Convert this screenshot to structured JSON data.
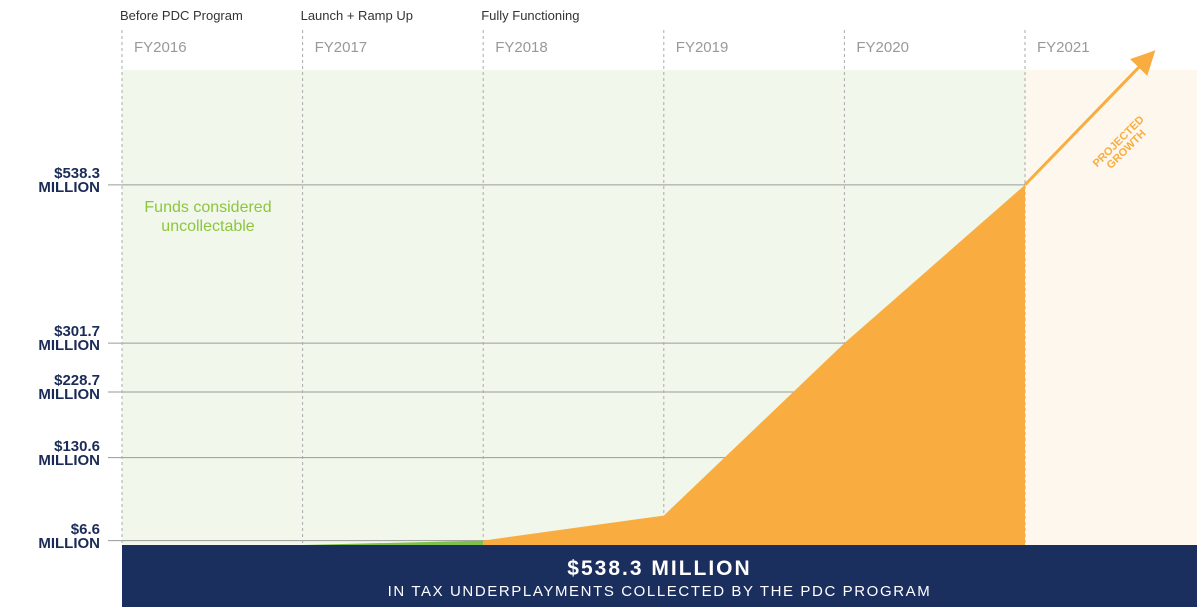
{
  "chart_data": {
    "type": "area",
    "phases": [
      "Before PDC Program",
      "Launch + Ramp Up",
      "Fully Functioning"
    ],
    "categories": [
      "FY2016",
      "FY2017",
      "FY2018",
      "FY2019",
      "FY2020",
      "FY2021"
    ],
    "series": [
      {
        "color": "#7dc14a",
        "values": [
          null,
          0,
          6.6,
          null,
          null,
          null
        ]
      },
      {
        "color": "#f9ad40",
        "values": [
          null,
          null,
          6.6,
          44,
          301.7,
          538.3
        ]
      }
    ],
    "ylim": [
      0,
      710
    ],
    "yticks": [
      {
        "value": 6.6,
        "label": "$6.6 MILLION"
      },
      {
        "value": 130.6,
        "label": "$130.6 MILLION"
      },
      {
        "value": 228.7,
        "label": "$228.7 MILLION"
      },
      {
        "value": 301.7,
        "label": "$301.7 MILLION"
      },
      {
        "value": 538.3,
        "label": "$538.3 MILLION"
      }
    ],
    "annotations": [
      "Funds considered uncollectable",
      "PROJECTED GROWTH"
    ],
    "banner": {
      "title": "$538.3 MILLION",
      "subtitle": "IN TAX UNDERPLAYMENTS COLLECTED BY THE PDC PROGRAM"
    }
  }
}
